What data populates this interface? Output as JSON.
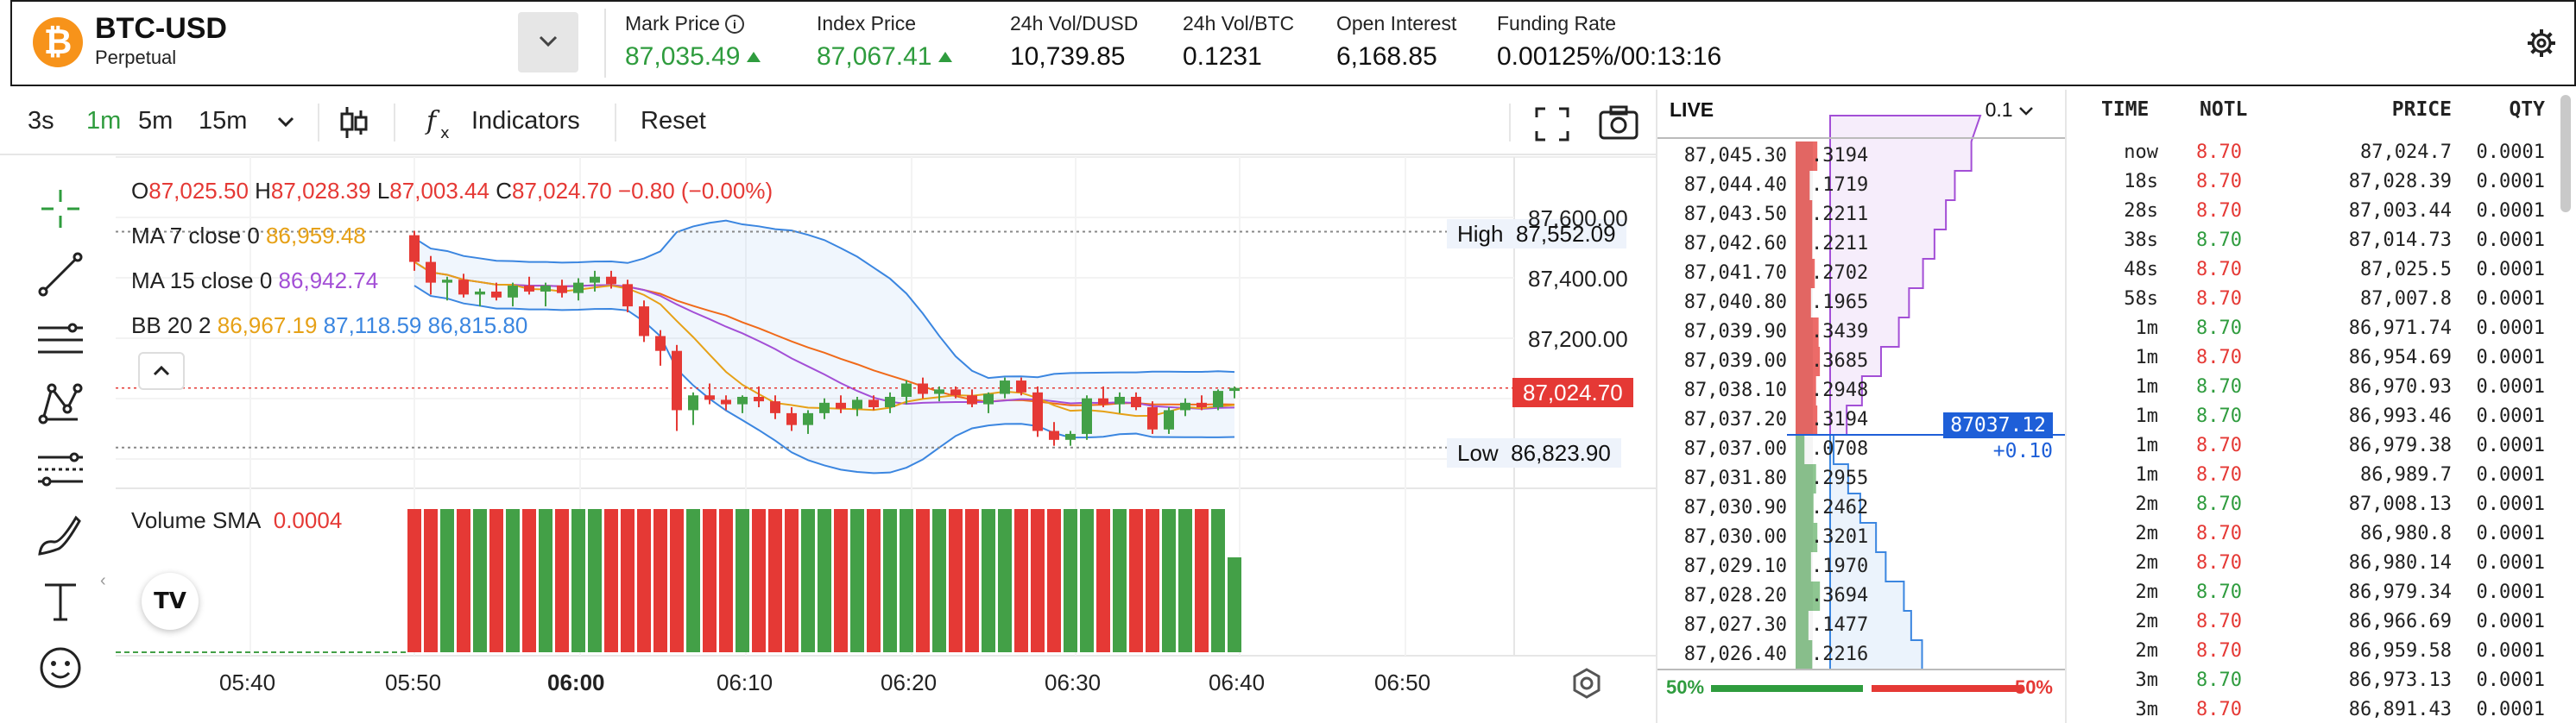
{
  "header": {
    "symbol": "BTC-USD",
    "product_type": "Perpetual",
    "logo_glyph": "₿",
    "stats": [
      {
        "label": "Mark Price",
        "value": "87,035.49",
        "trend": "up",
        "info_icon": true
      },
      {
        "label": "Index Price",
        "value": "87,067.41",
        "trend": "up"
      },
      {
        "label": "24h Vol/DUSD",
        "value": "10,739.85"
      },
      {
        "label": "24h Vol/BTC",
        "value": "0.1231"
      },
      {
        "label": "Open Interest",
        "value": "6,168.85"
      },
      {
        "label": "Funding Rate",
        "value": "0.00125%/00:13:16"
      }
    ]
  },
  "toolbar": {
    "intervals": [
      "3s",
      "1m",
      "5m",
      "15m"
    ],
    "active_interval": "1m",
    "indicators_label": "Indicators",
    "reset_label": "Reset"
  },
  "chart": {
    "ohlc": {
      "o_label": "O",
      "o": "87,025.50",
      "h_label": "H",
      "h": "87,028.39",
      "l_label": "L",
      "l": "87,003.44",
      "c_label": "C",
      "c": "87,024.70",
      "change": "−0.80 (−0.00%)"
    },
    "ma7": {
      "label": "MA 7 close 0",
      "value": "86,959.48"
    },
    "ma15": {
      "label": "MA 15 close 0",
      "value": "86,942.74"
    },
    "bb": {
      "label": "BB 20 2",
      "v1": "86,967.19",
      "v2": "87,118.59",
      "v3": "86,815.80"
    },
    "high": {
      "label": "High",
      "value": "87,552.09"
    },
    "low": {
      "label": "Low",
      "value": "86,823.90"
    },
    "last_price": "87,024.70",
    "y_ticks": [
      "87,600.00",
      "87,400.00",
      "87,200.00"
    ],
    "volume": {
      "label": "Volume SMA",
      "value": "0.0004"
    },
    "x_ticks": [
      "05:40",
      "05:50",
      "06:00",
      "06:10",
      "06:20",
      "06:30",
      "06:40",
      "06:50"
    ],
    "colors": {
      "up": "#43a047",
      "down": "#e53935",
      "ma7": "#e6a117",
      "ma15": "#a34fd6",
      "bb": "#3b86e0",
      "ema": "#f06a1a"
    }
  },
  "chart_data": {
    "type": "candlestick",
    "y_range": [
      86750,
      87650
    ],
    "x_ticks": [
      "05:40",
      "05:50",
      "06:00",
      "06:10",
      "06:20",
      "06:30",
      "06:40",
      "06:50"
    ],
    "candles": [
      [
        87540,
        87555,
        87420,
        87450
      ],
      [
        87450,
        87470,
        87340,
        87380
      ],
      [
        87380,
        87400,
        87320,
        87390
      ],
      [
        87390,
        87410,
        87330,
        87340
      ],
      [
        87340,
        87360,
        87300,
        87350
      ],
      [
        87350,
        87380,
        87320,
        87330
      ],
      [
        87330,
        87380,
        87300,
        87370
      ],
      [
        87370,
        87400,
        87340,
        87350
      ],
      [
        87350,
        87380,
        87300,
        87370
      ],
      [
        87370,
        87390,
        87330,
        87345
      ],
      [
        87345,
        87395,
        87320,
        87380
      ],
      [
        87380,
        87420,
        87350,
        87400
      ],
      [
        87400,
        87420,
        87360,
        87375
      ],
      [
        87375,
        87390,
        87280,
        87300
      ],
      [
        87300,
        87320,
        87180,
        87200
      ],
      [
        87200,
        87220,
        87100,
        87150
      ],
      [
        87150,
        87170,
        86880,
        86950
      ],
      [
        86950,
        87010,
        86900,
        87000
      ],
      [
        87000,
        87040,
        86970,
        86985
      ],
      [
        86985,
        87000,
        86950,
        86970
      ],
      [
        86970,
        87000,
        86940,
        86995
      ],
      [
        86995,
        87030,
        86960,
        86980
      ],
      [
        86980,
        87000,
        86920,
        86940
      ],
      [
        86940,
        86960,
        86880,
        86900
      ],
      [
        86900,
        86950,
        86870,
        86940
      ],
      [
        86940,
        86990,
        86920,
        86975
      ],
      [
        86975,
        87000,
        86940,
        86955
      ],
      [
        86955,
        86995,
        86930,
        86985
      ],
      [
        86985,
        87000,
        86950,
        86960
      ],
      [
        86960,
        87010,
        86940,
        86995
      ],
      [
        86995,
        87050,
        86970,
        87040
      ],
      [
        87040,
        87060,
        86990,
        87005
      ],
      [
        87005,
        87030,
        86980,
        87020
      ],
      [
        87020,
        87030,
        86990,
        87000
      ],
      [
        87000,
        87020,
        86960,
        86970
      ],
      [
        86970,
        87010,
        86940,
        87005
      ],
      [
        87005,
        87060,
        86990,
        87050
      ],
      [
        87050,
        87060,
        87000,
        87010
      ],
      [
        87010,
        87030,
        86860,
        86880
      ],
      [
        86880,
        86910,
        86830,
        86850
      ],
      [
        86850,
        86880,
        86830,
        86870
      ],
      [
        86870,
        87000,
        86850,
        86990
      ],
      [
        86990,
        87030,
        86960,
        86970
      ],
      [
        86970,
        87010,
        86940,
        86995
      ],
      [
        86995,
        87010,
        86950,
        86960
      ],
      [
        86960,
        86980,
        86870,
        86885
      ],
      [
        86885,
        86960,
        86870,
        86950
      ],
      [
        86950,
        86990,
        86930,
        86975
      ],
      [
        86975,
        87000,
        86950,
        86960
      ],
      [
        86960,
        87020,
        86950,
        87015
      ],
      [
        87015,
        87030,
        86990,
        87025
      ]
    ],
    "volume_sma": 0.0004
  },
  "orderbook": {
    "live_label": "LIVE",
    "precision": "0.1",
    "asks": [
      {
        "price": "87,045.30",
        "size": ".3194"
      },
      {
        "price": "87,044.40",
        "size": ".1719"
      },
      {
        "price": "87,043.50",
        "size": ".2211"
      },
      {
        "price": "87,042.60",
        "size": ".2211"
      },
      {
        "price": "87,041.70",
        "size": ".2702"
      },
      {
        "price": "87,040.80",
        "size": ".1965"
      },
      {
        "price": "87,039.90",
        "size": ".3439"
      },
      {
        "price": "87,039.00",
        "size": ".3685"
      },
      {
        "price": "87,038.10",
        "size": ".2948"
      },
      {
        "price": "87,037.20",
        "size": ".3194"
      }
    ],
    "bids": [
      {
        "price": "87,037.00",
        "size": ".0708"
      },
      {
        "price": "87,031.80",
        "size": ".2955"
      },
      {
        "price": "87,030.90",
        "size": ".2462"
      },
      {
        "price": "87,030.00",
        "size": ".3201"
      },
      {
        "price": "87,029.10",
        "size": ".1970"
      },
      {
        "price": "87,028.20",
        "size": ".3694"
      },
      {
        "price": "87,027.30",
        "size": ".1477"
      },
      {
        "price": "87,026.40",
        "size": ".2216"
      }
    ],
    "mid_price": "87037.12",
    "mid_delta": "+0.10",
    "bid_pct": "50%",
    "ask_pct": "50%"
  },
  "trades": {
    "headers": [
      "TIME",
      "NOTL",
      "PRICE",
      "QTY"
    ],
    "rows": [
      {
        "time": "now",
        "notl": "8.70",
        "side": "sell",
        "price": "87,024.7",
        "qty": "0.0001"
      },
      {
        "time": "18s",
        "notl": "8.70",
        "side": "sell",
        "price": "87,028.39",
        "qty": "0.0001"
      },
      {
        "time": "28s",
        "notl": "8.70",
        "side": "sell",
        "price": "87,003.44",
        "qty": "0.0001"
      },
      {
        "time": "38s",
        "notl": "8.70",
        "side": "buy",
        "price": "87,014.73",
        "qty": "0.0001"
      },
      {
        "time": "48s",
        "notl": "8.70",
        "side": "sell",
        "price": "87,025.5",
        "qty": "0.0001"
      },
      {
        "time": "58s",
        "notl": "8.70",
        "side": "sell",
        "price": "87,007.8",
        "qty": "0.0001"
      },
      {
        "time": "1m",
        "notl": "8.70",
        "side": "buy",
        "price": "86,971.74",
        "qty": "0.0001"
      },
      {
        "time": "1m",
        "notl": "8.70",
        "side": "sell",
        "price": "86,954.69",
        "qty": "0.0001"
      },
      {
        "time": "1m",
        "notl": "8.70",
        "side": "buy",
        "price": "86,970.93",
        "qty": "0.0001"
      },
      {
        "time": "1m",
        "notl": "8.70",
        "side": "buy",
        "price": "86,993.46",
        "qty": "0.0001"
      },
      {
        "time": "1m",
        "notl": "8.70",
        "side": "sell",
        "price": "86,979.38",
        "qty": "0.0001"
      },
      {
        "time": "1m",
        "notl": "8.70",
        "side": "sell",
        "price": "86,989.7",
        "qty": "0.0001"
      },
      {
        "time": "2m",
        "notl": "8.70",
        "side": "buy",
        "price": "87,008.13",
        "qty": "0.0001"
      },
      {
        "time": "2m",
        "notl": "8.70",
        "side": "sell",
        "price": "86,980.8",
        "qty": "0.0001"
      },
      {
        "time": "2m",
        "notl": "8.70",
        "side": "sell",
        "price": "86,980.14",
        "qty": "0.0001"
      },
      {
        "time": "2m",
        "notl": "8.70",
        "side": "buy",
        "price": "86,979.34",
        "qty": "0.0001"
      },
      {
        "time": "2m",
        "notl": "8.70",
        "side": "sell",
        "price": "86,966.69",
        "qty": "0.0001"
      },
      {
        "time": "2m",
        "notl": "8.70",
        "side": "sell",
        "price": "86,959.58",
        "qty": "0.0001"
      },
      {
        "time": "3m",
        "notl": "8.70",
        "side": "buy",
        "price": "86,973.13",
        "qty": "0.0001"
      },
      {
        "time": "3m",
        "notl": "8.70",
        "side": "sell",
        "price": "86,891.43",
        "qty": "0.0001"
      }
    ]
  }
}
